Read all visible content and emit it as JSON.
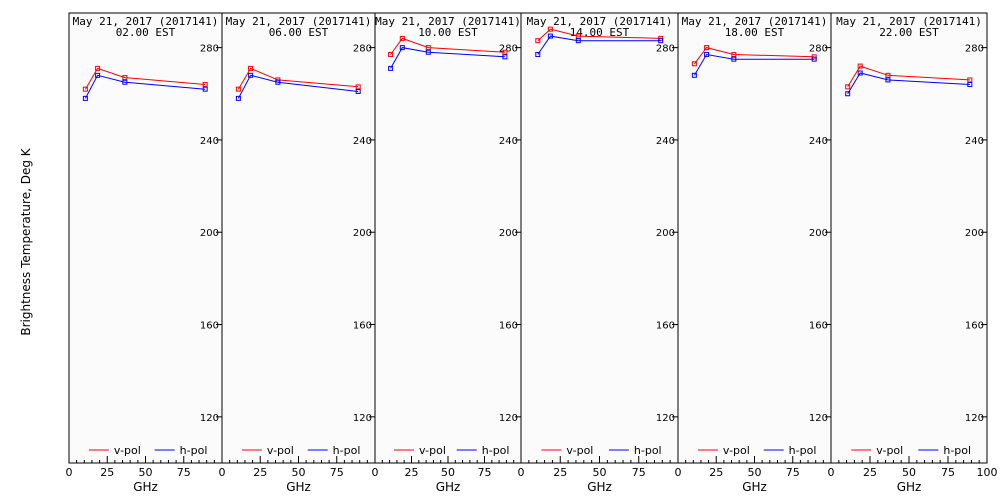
{
  "ylabel": "Brightness Temperature, Deg K",
  "xlabel": "GHz",
  "colors": {
    "vpol": "#ff0000",
    "hpol": "#0000ff"
  },
  "chart_data": [
    {
      "type": "line",
      "title": "May 21, 2017 (2017141)",
      "subtitle": "02.00 EST",
      "xlim": [
        0,
        100
      ],
      "ylim": [
        100,
        295
      ],
      "xticks": [
        0,
        25,
        50,
        75
      ],
      "yticks": [
        120,
        160,
        200,
        240,
        280
      ],
      "series": [
        {
          "name": "v-pol",
          "x": [
            10.7,
            18.7,
            36.5,
            89
          ],
          "values": [
            262,
            271,
            267,
            264
          ]
        },
        {
          "name": "h-pol",
          "x": [
            10.7,
            18.7,
            36.5,
            89
          ],
          "values": [
            258,
            268,
            265,
            262
          ]
        }
      ]
    },
    {
      "type": "line",
      "title": "May 21, 2017 (2017141)",
      "subtitle": "06.00 EST",
      "xlim": [
        0,
        100
      ],
      "ylim": [
        100,
        295
      ],
      "xticks": [
        0,
        25,
        50,
        75
      ],
      "yticks": [
        120,
        160,
        200,
        240,
        280
      ],
      "series": [
        {
          "name": "v-pol",
          "x": [
            10.7,
            18.7,
            36.5,
            89
          ],
          "values": [
            262,
            271,
            266,
            263
          ]
        },
        {
          "name": "h-pol",
          "x": [
            10.7,
            18.7,
            36.5,
            89
          ],
          "values": [
            258,
            268,
            265,
            261
          ]
        }
      ]
    },
    {
      "type": "line",
      "title": "May 21, 2017 (2017141)",
      "subtitle": "10.00 EST",
      "xlim": [
        0,
        100
      ],
      "ylim": [
        100,
        295
      ],
      "xticks": [
        0,
        25,
        50,
        75
      ],
      "yticks": [
        120,
        160,
        200,
        240,
        280
      ],
      "series": [
        {
          "name": "v-pol",
          "x": [
            10.7,
            18.7,
            36.5,
            89
          ],
          "values": [
            277,
            284,
            280,
            278
          ]
        },
        {
          "name": "h-pol",
          "x": [
            10.7,
            18.7,
            36.5,
            89
          ],
          "values": [
            271,
            280,
            278,
            276
          ]
        }
      ]
    },
    {
      "type": "line",
      "title": "May 21, 2017 (2017141)",
      "subtitle": "14.00 EST",
      "xlim": [
        0,
        100
      ],
      "ylim": [
        100,
        295
      ],
      "xticks": [
        0,
        25,
        50,
        75
      ],
      "yticks": [
        120,
        160,
        200,
        240,
        280
      ],
      "series": [
        {
          "name": "v-pol",
          "x": [
            10.7,
            18.7,
            36.5,
            89
          ],
          "values": [
            283,
            288,
            285,
            284
          ]
        },
        {
          "name": "h-pol",
          "x": [
            10.7,
            18.7,
            36.5,
            89
          ],
          "values": [
            277,
            285,
            283,
            283
          ]
        }
      ]
    },
    {
      "type": "line",
      "title": "May 21, 2017 (2017141)",
      "subtitle": "18.00 EST",
      "xlim": [
        0,
        100
      ],
      "ylim": [
        100,
        295
      ],
      "xticks": [
        0,
        25,
        50,
        75
      ],
      "yticks": [
        120,
        160,
        200,
        240,
        280
      ],
      "series": [
        {
          "name": "v-pol",
          "x": [
            10.7,
            18.7,
            36.5,
            89
          ],
          "values": [
            273,
            280,
            277,
            276
          ]
        },
        {
          "name": "h-pol",
          "x": [
            10.7,
            18.7,
            36.5,
            89
          ],
          "values": [
            268,
            277,
            275,
            275
          ]
        }
      ]
    },
    {
      "type": "line",
      "title": "May 21, 2017 (2017141)",
      "subtitle": "22.00 EST",
      "xlim": [
        0,
        100
      ],
      "ylim": [
        100,
        295
      ],
      "xticks": [
        0,
        25,
        50,
        75
      ],
      "yticks": [
        120,
        160,
        200,
        240,
        280
      ],
      "series": [
        {
          "name": "v-pol",
          "x": [
            10.7,
            18.7,
            36.5,
            89
          ],
          "values": [
            263,
            272,
            268,
            266
          ]
        },
        {
          "name": "h-pol",
          "x": [
            10.7,
            18.7,
            36.5,
            89
          ],
          "values": [
            260,
            269,
            266,
            264
          ]
        }
      ]
    }
  ]
}
